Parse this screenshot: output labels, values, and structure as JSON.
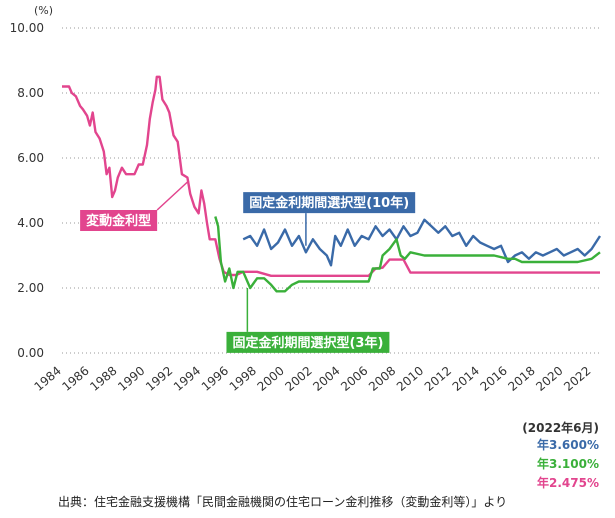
{
  "chart_data": {
    "type": "line",
    "y_unit": "(%)",
    "ylim": [
      0,
      10
    ],
    "y_ticks": [
      "0.00",
      "2.00",
      "4.00",
      "6.00",
      "8.00",
      "10.00"
    ],
    "xlim": [
      1984,
      2022.6
    ],
    "x_ticks": [
      "1984",
      "1986",
      "1988",
      "1990",
      "1992",
      "1994",
      "1996",
      "1998",
      "2000",
      "2002",
      "2004",
      "2006",
      "2008",
      "2010",
      "2012",
      "2014",
      "2016",
      "2018",
      "2020",
      "2022"
    ],
    "grid": "horizontal dotted",
    "series": [
      {
        "name": "変動金利型",
        "color": "#e2458e",
        "points": [
          [
            1984.0,
            8.2
          ],
          [
            1984.5,
            8.2
          ],
          [
            1984.7,
            8.0
          ],
          [
            1985.0,
            7.9
          ],
          [
            1985.3,
            7.6
          ],
          [
            1985.5,
            7.5
          ],
          [
            1985.8,
            7.3
          ],
          [
            1986.0,
            7.0
          ],
          [
            1986.2,
            7.4
          ],
          [
            1986.4,
            6.8
          ],
          [
            1986.7,
            6.6
          ],
          [
            1987.0,
            6.2
          ],
          [
            1987.2,
            5.5
          ],
          [
            1987.4,
            5.7
          ],
          [
            1987.6,
            4.8
          ],
          [
            1987.8,
            5.0
          ],
          [
            1988.0,
            5.4
          ],
          [
            1988.3,
            5.7
          ],
          [
            1988.6,
            5.5
          ],
          [
            1989.2,
            5.5
          ],
          [
            1989.5,
            5.8
          ],
          [
            1989.8,
            5.8
          ],
          [
            1990.0,
            6.2
          ],
          [
            1990.1,
            6.4
          ],
          [
            1990.3,
            7.2
          ],
          [
            1990.5,
            7.7
          ],
          [
            1990.7,
            8.1
          ],
          [
            1990.8,
            8.5
          ],
          [
            1991.0,
            8.5
          ],
          [
            1991.2,
            7.8
          ],
          [
            1991.5,
            7.6
          ],
          [
            1991.7,
            7.4
          ],
          [
            1992.0,
            6.7
          ],
          [
            1992.3,
            6.5
          ],
          [
            1992.6,
            5.5
          ],
          [
            1993.0,
            5.4
          ],
          [
            1993.2,
            4.9
          ],
          [
            1993.5,
            4.5
          ],
          [
            1993.8,
            4.3
          ],
          [
            1994.0,
            5.0
          ],
          [
            1994.2,
            4.6
          ],
          [
            1994.4,
            4.0
          ],
          [
            1994.6,
            3.5
          ],
          [
            1995.0,
            3.5
          ],
          [
            1995.3,
            2.9
          ],
          [
            1995.6,
            2.5
          ],
          [
            1996.0,
            2.4
          ],
          [
            1996.5,
            2.4
          ],
          [
            1997.0,
            2.5
          ],
          [
            1998.0,
            2.5
          ],
          [
            1999.0,
            2.375
          ],
          [
            2006.0,
            2.375
          ],
          [
            2006.5,
            2.6
          ],
          [
            2007.0,
            2.625
          ],
          [
            2007.5,
            2.875
          ],
          [
            2008.5,
            2.875
          ],
          [
            2009.0,
            2.475
          ],
          [
            2022.6,
            2.475
          ]
        ]
      },
      {
        "name": "固定金利期間選択型(10年)",
        "color": "#3a6aa8",
        "points": [
          [
            1997.0,
            3.5
          ],
          [
            1997.5,
            3.6
          ],
          [
            1998.0,
            3.3
          ],
          [
            1998.5,
            3.8
          ],
          [
            1999.0,
            3.2
          ],
          [
            1999.5,
            3.4
          ],
          [
            2000.0,
            3.8
          ],
          [
            2000.5,
            3.3
          ],
          [
            2001.0,
            3.6
          ],
          [
            2001.5,
            3.1
          ],
          [
            2002.0,
            3.5
          ],
          [
            2002.5,
            3.2
          ],
          [
            2003.0,
            3.0
          ],
          [
            2003.3,
            2.7
          ],
          [
            2003.6,
            3.6
          ],
          [
            2004.0,
            3.3
          ],
          [
            2004.5,
            3.8
          ],
          [
            2005.0,
            3.3
          ],
          [
            2005.5,
            3.6
          ],
          [
            2006.0,
            3.5
          ],
          [
            2006.5,
            3.9
          ],
          [
            2007.0,
            3.6
          ],
          [
            2007.5,
            3.8
          ],
          [
            2008.0,
            3.5
          ],
          [
            2008.5,
            3.9
          ],
          [
            2009.0,
            3.6
          ],
          [
            2009.5,
            3.7
          ],
          [
            2010.0,
            4.1
          ],
          [
            2010.5,
            3.9
          ],
          [
            2011.0,
            3.7
          ],
          [
            2011.5,
            3.9
          ],
          [
            2012.0,
            3.6
          ],
          [
            2012.5,
            3.7
          ],
          [
            2013.0,
            3.3
          ],
          [
            2013.5,
            3.6
          ],
          [
            2014.0,
            3.4
          ],
          [
            2014.5,
            3.3
          ],
          [
            2015.0,
            3.2
          ],
          [
            2015.5,
            3.3
          ],
          [
            2016.0,
            2.8
          ],
          [
            2016.5,
            3.0
          ],
          [
            2017.0,
            3.1
          ],
          [
            2017.5,
            2.9
          ],
          [
            2018.0,
            3.1
          ],
          [
            2018.5,
            3.0
          ],
          [
            2019.0,
            3.1
          ],
          [
            2019.5,
            3.2
          ],
          [
            2020.0,
            3.0
          ],
          [
            2020.5,
            3.1
          ],
          [
            2021.0,
            3.2
          ],
          [
            2021.5,
            3.0
          ],
          [
            2022.0,
            3.2
          ],
          [
            2022.6,
            3.6
          ]
        ]
      },
      {
        "name": "固定金利期間選択型(3年)",
        "color": "#3ab03a",
        "points": [
          [
            1995.0,
            4.2
          ],
          [
            1995.2,
            3.9
          ],
          [
            1995.4,
            2.8
          ],
          [
            1995.7,
            2.2
          ],
          [
            1996.0,
            2.6
          ],
          [
            1996.3,
            2.0
          ],
          [
            1996.6,
            2.5
          ],
          [
            1997.0,
            2.5
          ],
          [
            1997.5,
            2.0
          ],
          [
            1998.0,
            2.3
          ],
          [
            1998.5,
            2.3
          ],
          [
            1999.0,
            2.1
          ],
          [
            1999.4,
            1.9
          ],
          [
            2000.0,
            1.9
          ],
          [
            2000.5,
            2.1
          ],
          [
            2001.0,
            2.2
          ],
          [
            2002.0,
            2.2
          ],
          [
            2004.0,
            2.2
          ],
          [
            2005.0,
            2.2
          ],
          [
            2006.0,
            2.2
          ],
          [
            2006.3,
            2.6
          ],
          [
            2006.8,
            2.6
          ],
          [
            2007.0,
            3.0
          ],
          [
            2007.5,
            3.2
          ],
          [
            2008.0,
            3.5
          ],
          [
            2008.3,
            3.0
          ],
          [
            2008.6,
            2.9
          ],
          [
            2009.0,
            3.1
          ],
          [
            2010.0,
            3.0
          ],
          [
            2011.0,
            3.0
          ],
          [
            2012.0,
            3.0
          ],
          [
            2013.0,
            3.0
          ],
          [
            2014.0,
            3.0
          ],
          [
            2015.0,
            3.0
          ],
          [
            2016.0,
            2.9
          ],
          [
            2016.5,
            2.9
          ],
          [
            2017.0,
            2.8
          ],
          [
            2020.0,
            2.8
          ],
          [
            2021.0,
            2.8
          ],
          [
            2022.0,
            2.9
          ],
          [
            2022.6,
            3.1
          ]
        ]
      }
    ],
    "annotations": [
      {
        "text": "変動金利型",
        "color": "#e2458e",
        "box_x": 1985.3,
        "box_y": 4.4,
        "arrow_to": [
          1993.1,
          5.3
        ]
      },
      {
        "text": "固定金利期間選択型(10年)",
        "color": "#3a6aa8",
        "box_x": 1997.0,
        "box_y": 4.95,
        "arrow_to": [
          2001.5,
          3.3
        ]
      },
      {
        "text": "固定金利期間選択型(3年)",
        "color": "#3ab03a",
        "box_x": 1995.8,
        "box_y": 0.65,
        "arrow_to": [
          1997.3,
          2.0
        ]
      }
    ],
    "as_of": "(2022年6月)",
    "latest_rates": [
      {
        "text": "年3.600%",
        "color": "#3a6aa8"
      },
      {
        "text": "年3.100%",
        "color": "#3ab03a"
      },
      {
        "text": "年2.475%",
        "color": "#e2458e"
      }
    ],
    "source": "出典：住宅金融支援機構「民間金融機関の住宅ローン金利推移（変動金利等）」より"
  }
}
